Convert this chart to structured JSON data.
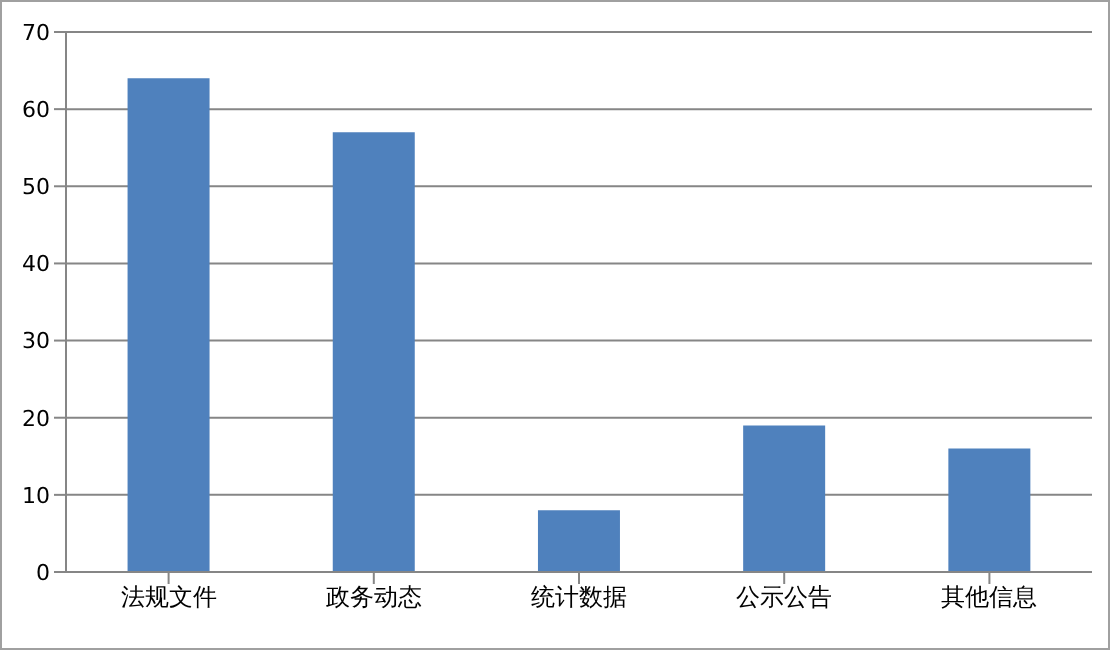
{
  "chart_data": {
    "type": "bar",
    "categories": [
      "法规文件",
      "政务动态",
      "统计数据",
      "公示公告",
      "其他信息"
    ],
    "values": [
      64,
      57,
      8,
      19,
      16
    ],
    "color": "#4f81bd",
    "ylim": [
      0,
      70
    ],
    "yticks": [
      0,
      10,
      20,
      30,
      40,
      50,
      60,
      70
    ],
    "grid": "y",
    "legend": false
  }
}
